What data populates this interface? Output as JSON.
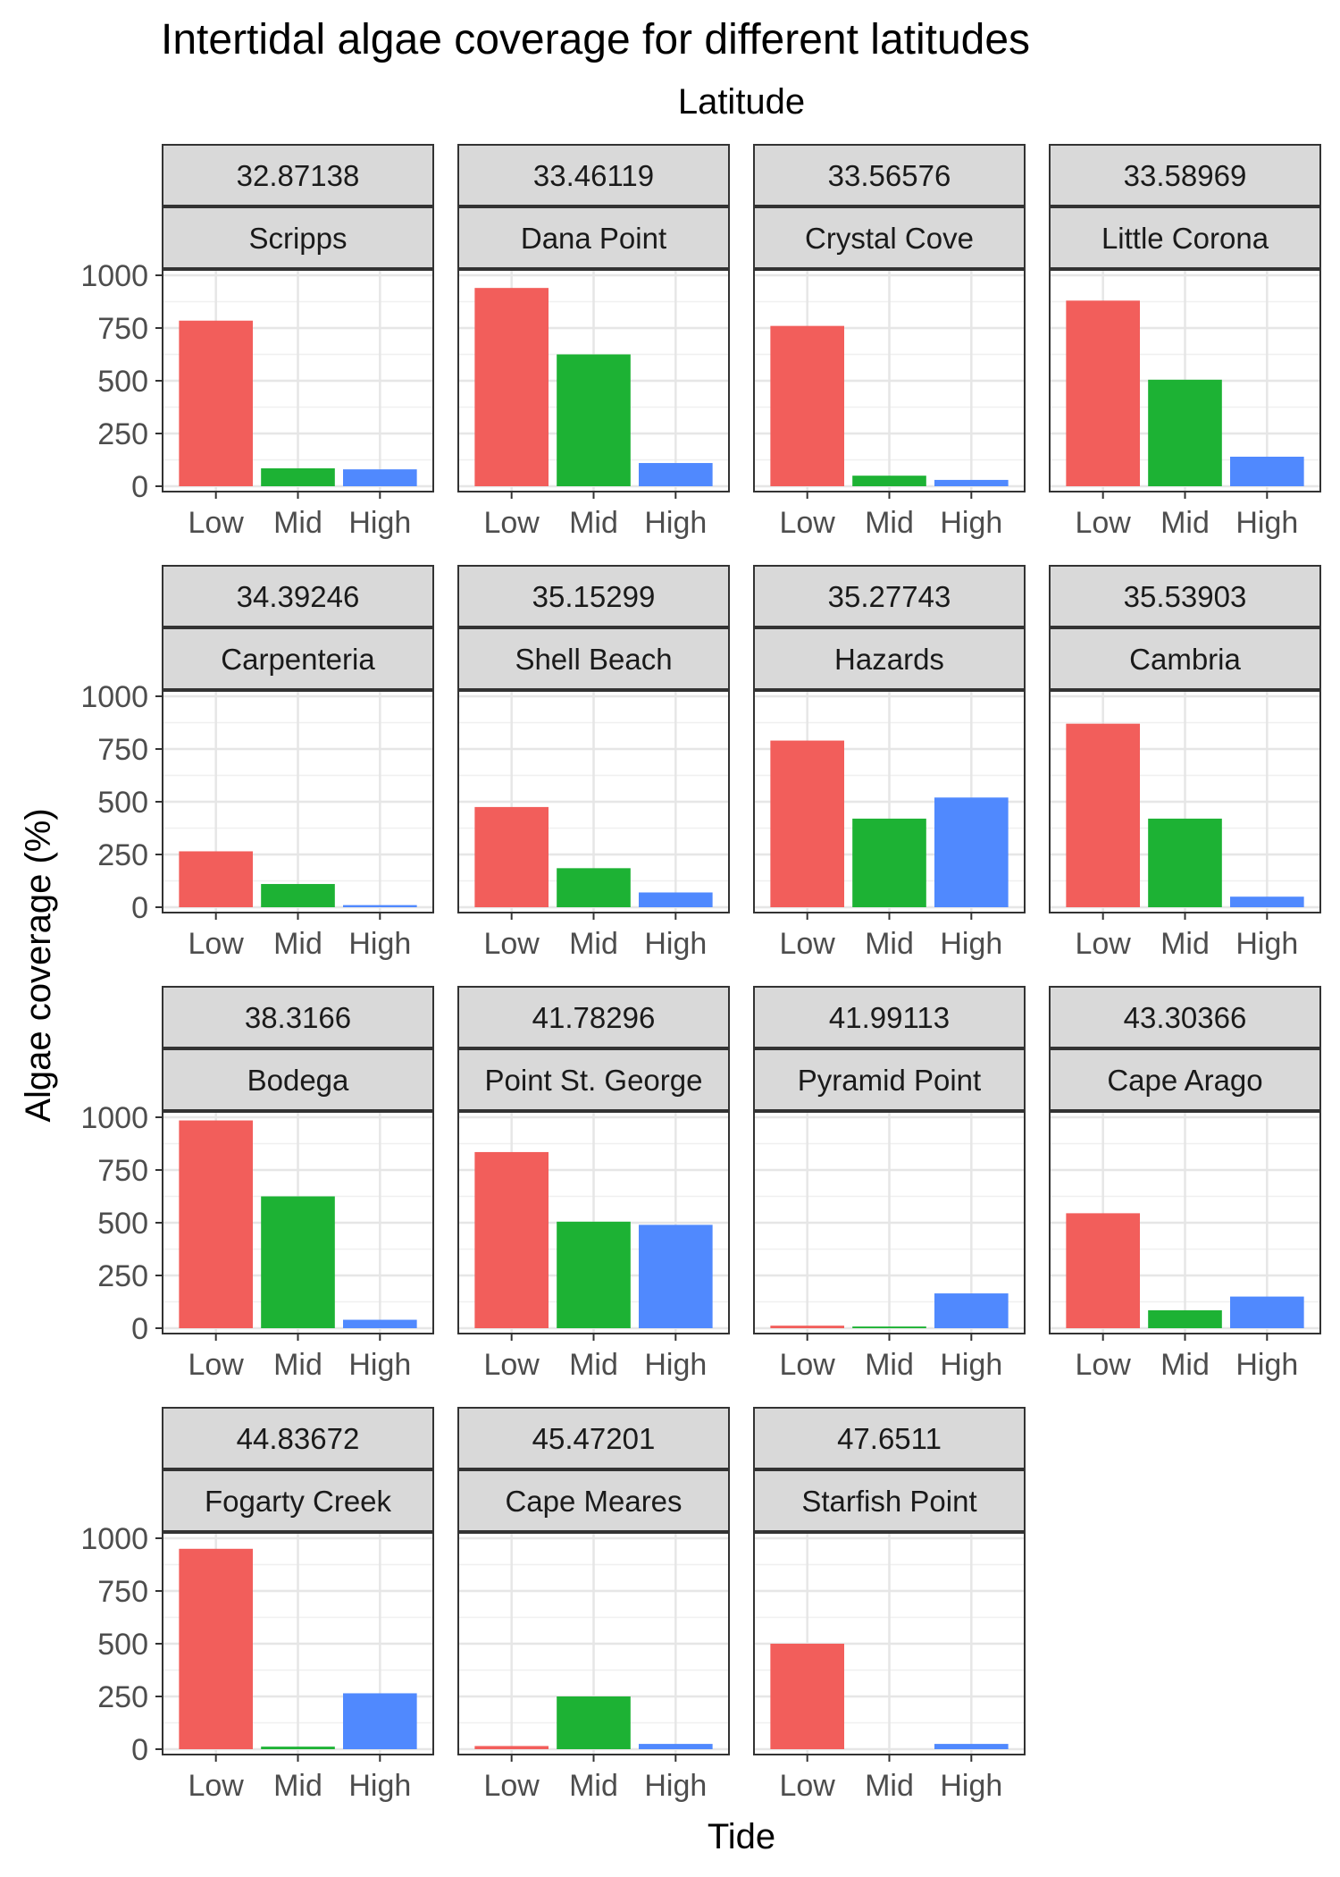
{
  "chart_data": {
    "type": "bar",
    "title": "Intertidal algae coverage for different latitudes",
    "facet_label": "Latitude",
    "xlabel": "Tide",
    "ylabel": "Algae coverage (%)",
    "categories": [
      "Low",
      "Mid",
      "High"
    ],
    "ylim": [
      0,
      1000
    ],
    "yticks": [
      0,
      250,
      500,
      750,
      1000
    ],
    "colors": {
      "Low": "#F25E5B",
      "Mid": "#1DB234",
      "High": "#5089FE"
    },
    "grid": true,
    "facets": [
      {
        "latitude": "32.87138",
        "site": "Scripps",
        "values": [
          785,
          85,
          80
        ]
      },
      {
        "latitude": "33.46119",
        "site": "Dana Point",
        "values": [
          940,
          625,
          110
        ]
      },
      {
        "latitude": "33.56576",
        "site": "Crystal Cove",
        "values": [
          760,
          50,
          30
        ]
      },
      {
        "latitude": "33.58969",
        "site": "Little Corona",
        "values": [
          880,
          505,
          140
        ]
      },
      {
        "latitude": "34.39246",
        "site": "Carpenteria",
        "values": [
          265,
          110,
          10
        ]
      },
      {
        "latitude": "35.15299",
        "site": "Shell Beach",
        "values": [
          475,
          185,
          70
        ]
      },
      {
        "latitude": "35.27743",
        "site": "Hazards",
        "values": [
          790,
          420,
          520
        ]
      },
      {
        "latitude": "35.53903",
        "site": "Cambria",
        "values": [
          870,
          420,
          50
        ]
      },
      {
        "latitude": "38.3166",
        "site": "Bodega",
        "values": [
          985,
          625,
          40
        ]
      },
      {
        "latitude": "41.78296",
        "site": "Point St. George",
        "values": [
          835,
          505,
          490
        ]
      },
      {
        "latitude": "41.99113",
        "site": "Pyramid Point",
        "values": [
          12,
          8,
          165
        ]
      },
      {
        "latitude": "43.30366",
        "site": "Cape Arago",
        "values": [
          545,
          85,
          150
        ]
      },
      {
        "latitude": "44.83672",
        "site": "Fogarty Creek",
        "values": [
          950,
          12,
          265
        ]
      },
      {
        "latitude": "45.47201",
        "site": "Cape Meares",
        "values": [
          15,
          250,
          25
        ]
      },
      {
        "latitude": "47.6511",
        "site": "Starfish Point",
        "values": [
          500,
          0,
          25
        ]
      }
    ]
  }
}
